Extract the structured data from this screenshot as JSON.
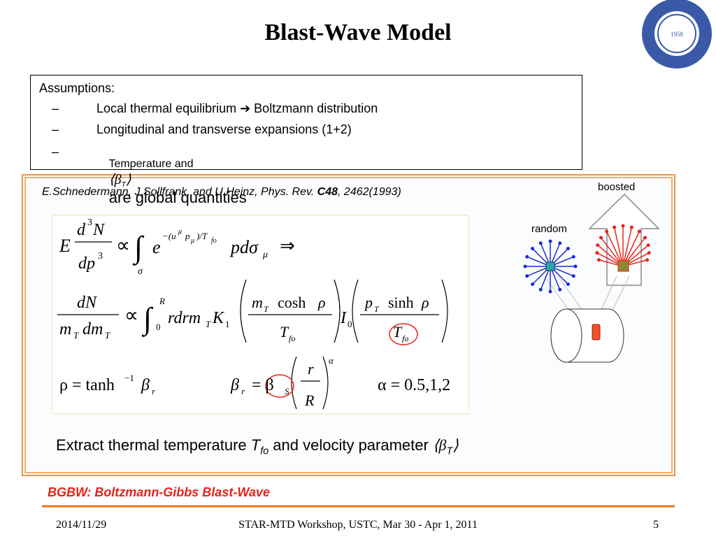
{
  "header": {
    "title": "Blast-Wave Model",
    "logo_year": "1958"
  },
  "assumptions": {
    "heading": "Assumptions:",
    "bullet": "–",
    "items": [
      [
        "Local thermal equilibrium ➔ Boltzmann distribution"
      ],
      [
        "Longitudinal and transverse expansions (1+2)"
      ],
      [
        "Temperature and",
        "⟨β",
        "T",
        "⟩",
        "are global quantities"
      ]
    ]
  },
  "reference": [
    "E.Schnedermann, J.Sollfrank, and U.Heinz, Phys. Rev. ",
    "C48",
    ", 2462(1993)"
  ],
  "equations": {
    "eq1": [
      "E",
      "d",
      "3",
      "N",
      "dp",
      "3",
      "∝",
      "∫",
      "σ",
      "e",
      "−(u",
      "μ",
      "p",
      "μ",
      ")/T",
      "fo",
      "pdσ",
      "μ",
      "⇒"
    ],
    "eq2": [
      "dN",
      "m",
      "T",
      "dm",
      "T",
      "∝",
      "∫",
      "R",
      "0",
      "rdrm",
      "T",
      "K",
      "1",
      "m",
      "T",
      "cosh",
      "ρ",
      "T",
      "fo",
      "I",
      "0",
      "p",
      "T",
      "sinh",
      "ρ",
      "T",
      "fo"
    ],
    "eq3": [
      "ρ = tanh",
      "−1",
      "β",
      "r",
      "β",
      "r",
      "= β",
      "S",
      "r",
      "R",
      "α",
      "α = 0.5,1,2"
    ]
  },
  "diagram": {
    "boosted": "boosted",
    "random": "random"
  },
  "extract": [
    "Extract thermal temperature ",
    "T",
    "fo",
    " and velocity parameter ",
    "⟨β",
    "T",
    "⟩"
  ],
  "note": "BGBW: Boltzmann-Gibbs Blast-Wave",
  "footer": {
    "date": "2014/11/29",
    "event": "STAR-MTD Workshop, USTC, Mar 30 - Apr 1, 2011",
    "page": "5"
  }
}
